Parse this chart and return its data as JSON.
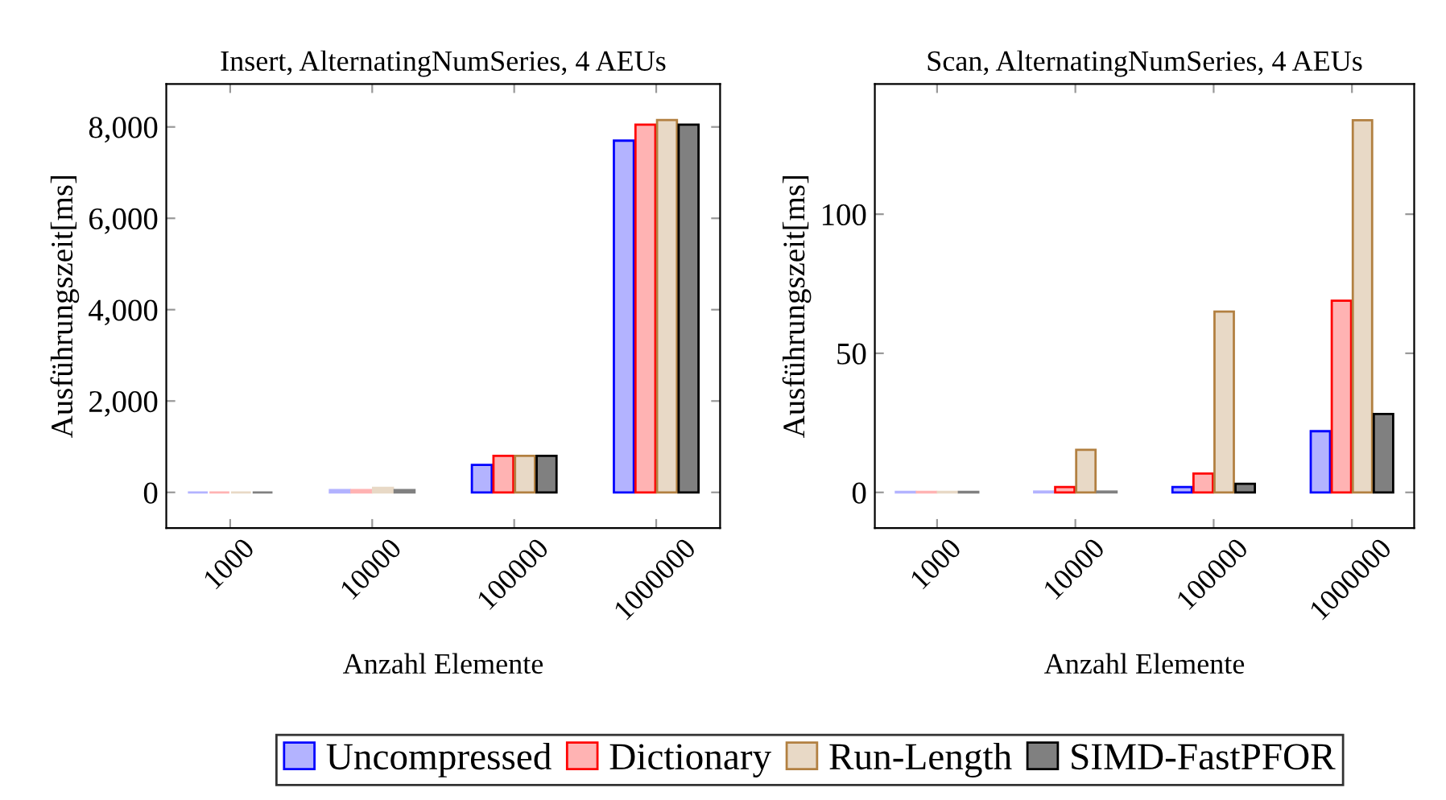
{
  "chart_data": [
    {
      "type": "bar",
      "title": "Insert, AlternatingNumSeries, 4 AEUs",
      "xlabel": "Anzahl Elemente",
      "ylabel": "Ausführungszeit[ms]",
      "categories": [
        "1000",
        "10000",
        "100000",
        "1000000"
      ],
      "series": [
        {
          "color": "#b3b3ff",
          "values": [
            0,
            50,
            600,
            7700
          ]
        },
        {
          "color": "#ffb3b3",
          "values": [
            0,
            50,
            800,
            8050
          ]
        },
        {
          "color": "#e8d9c6",
          "values": [
            0,
            100,
            800,
            8150
          ]
        },
        {
          "color": "#808080",
          "values": [
            0,
            50,
            800,
            8050
          ]
        }
      ],
      "ylim": [
        -780,
        8940
      ],
      "yticks": [
        0,
        {
          "value": 2000,
          "label": "2,000"
        },
        {
          "value": 4000,
          "label": "4,000"
        },
        {
          "value": 6000,
          "label": "6,000"
        },
        {
          "value": 8000,
          "label": "8,000"
        }
      ]
    },
    {
      "type": "bar",
      "title": "Scan, AlternatingNumSeries, 4 AEUs",
      "xlabel": "Anzahl Elemente",
      "ylabel": "Ausführungszeit[ms]",
      "categories": [
        "1000",
        "10000",
        "100000",
        "1000000"
      ],
      "series": [
        {
          "name": "Uncompressed",
          "color": "#b3b3ff",
          "values": [
            0.2,
            0.3,
            1.9,
            22
          ]
        },
        {
          "name": "Dictionary",
          "color": "#ffb3b3",
          "values": [
            0.2,
            1.9,
            6.8,
            68.9
          ]
        },
        {
          "name": "Run-Length",
          "color": "#e8d9c6",
          "values": [
            0.2,
            15.3,
            65,
            133.8
          ]
        },
        {
          "name": "SIMD-FastPFOR",
          "color": "#808080",
          "values": [
            0.2,
            0.3,
            3.1,
            28.2
          ]
        }
      ],
      "ylim": [
        -12.8,
        146.8
      ],
      "yticks": [
        0,
        50,
        100
      ],
      "legend": "bottom"
    }
  ]
}
